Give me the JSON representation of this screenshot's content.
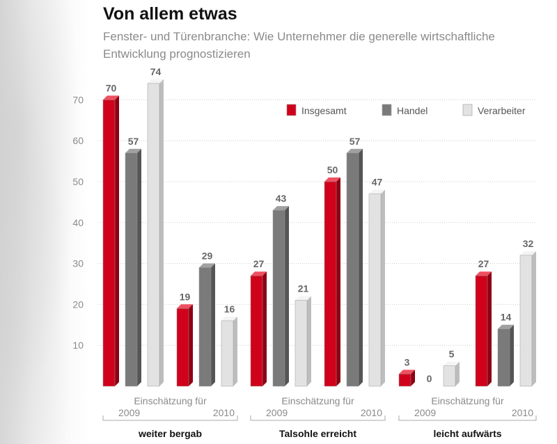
{
  "header": {
    "title": "Von allem etwas",
    "subtitle": "Fenster- und Türenbranche: Wie Unternehmer die generelle wirtschaftliche Entwicklung prognostizieren"
  },
  "chart_data": {
    "type": "bar",
    "title": "Von allem etwas",
    "subtitle": "Fenster- und Türenbranche: Wie Unternehmer die generelle wirtschaftliche Entwicklung prognostizieren",
    "ylim": [
      0,
      70
    ],
    "yticks": [
      10,
      20,
      30,
      40,
      50,
      60,
      70
    ],
    "grid": true,
    "legend_position": "top-right",
    "series": [
      {
        "name": "Insgesamt",
        "color": "#d0021b"
      },
      {
        "name": "Handel",
        "color": "#7a7a7a"
      },
      {
        "name": "Verarbeiter",
        "color": "#e2e2e2"
      }
    ],
    "groups": [
      {
        "name": "weiter bergab",
        "caption": "Einschätzung für",
        "periods": [
          {
            "label": "2009",
            "values": [
              70,
              57,
              74
            ]
          },
          {
            "label": "2010",
            "values": [
              19,
              29,
              16
            ]
          }
        ]
      },
      {
        "name": "Talsohle erreicht",
        "caption": "Einschätzung für",
        "periods": [
          {
            "label": "2009",
            "values": [
              27,
              43,
              21
            ]
          },
          {
            "label": "2010",
            "values": [
              50,
              57,
              47
            ]
          }
        ]
      },
      {
        "name": "leicht aufwärts",
        "caption": "Einschätzung für",
        "periods": [
          {
            "label": "2009",
            "values": [
              3,
              0,
              5
            ]
          },
          {
            "label": "2010",
            "values": [
              27,
              14,
              32
            ]
          }
        ]
      }
    ]
  }
}
